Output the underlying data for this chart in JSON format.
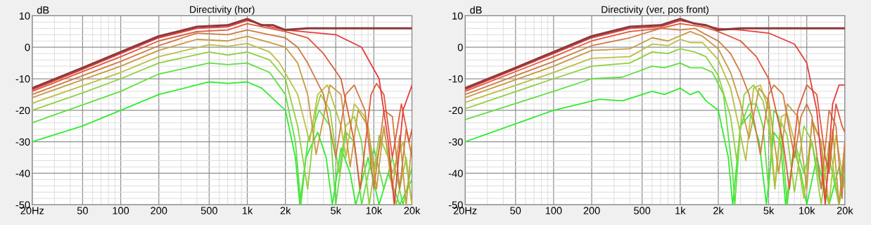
{
  "chart_data": [
    {
      "type": "line",
      "title": "Directivity (hor)",
      "ylabel": "dB",
      "log": "x",
      "grid": true,
      "xlim": [
        20,
        20000
      ],
      "xticks": [
        {
          "value": 20,
          "label": "20Hz"
        },
        50,
        100,
        200,
        500,
        {
          "value": 1000,
          "label": "1k"
        },
        {
          "value": 2000,
          "label": "2k"
        },
        {
          "value": 5000,
          "label": "5k"
        },
        {
          "value": 10000,
          "label": "10k"
        },
        {
          "value": 20000,
          "label": "20k"
        }
      ],
      "ylim": [
        -50,
        10
      ],
      "yticks": [
        -50,
        -40,
        -30,
        -20,
        -10,
        0,
        10
      ],
      "series": [
        {
          "color": "#8a3a3a",
          "x": [
            20,
            50,
            100,
            200,
            400,
            700,
            1000,
            1300,
            1600,
            2000,
            3000,
            5000,
            20000
          ],
          "values": [
            -13,
            -6.5,
            -1.5,
            3.5,
            6.5,
            7,
            9,
            7,
            7,
            5.5,
            6,
            6,
            6
          ]
        },
        {
          "color": "#e63c3c",
          "x": [
            20,
            50,
            100,
            200,
            400,
            700,
            1000,
            1500,
            2000,
            5000,
            8000,
            11000,
            13000,
            14500,
            17000,
            20000
          ],
          "values": [
            -13.5,
            -7,
            -2,
            3,
            6,
            6.5,
            8.5,
            6.5,
            5.5,
            4,
            0,
            -10,
            -30,
            -50,
            -20,
            -12
          ]
        },
        {
          "color": "#e0583a",
          "x": [
            20,
            100,
            200,
            400,
            700,
            1000,
            1500,
            2000,
            3000,
            4000,
            5500,
            7000,
            7800,
            9500,
            10500,
            12000,
            14000,
            16500,
            19000,
            20000
          ],
          "values": [
            -14,
            -3,
            2,
            5,
            5.5,
            7.5,
            6,
            5,
            3,
            -2,
            -10,
            -30,
            -45,
            -15,
            -11.5,
            -15,
            -35,
            -18,
            -30,
            -26
          ]
        },
        {
          "color": "#d07a42",
          "x": [
            20,
            100,
            200,
            400,
            700,
            1000,
            1500,
            2000,
            2500,
            3000,
            4000,
            5000,
            6000,
            7000,
            8500,
            10000,
            12000,
            14000,
            16000,
            18000,
            20000
          ],
          "values": [
            -15,
            -4.5,
            0.5,
            4.5,
            4,
            5.5,
            4,
            3,
            0,
            -5,
            -15,
            -35,
            -15,
            -12,
            -20,
            -45,
            -20,
            -22,
            -45,
            -26,
            -35
          ]
        },
        {
          "color": "#c89a42",
          "x": [
            20,
            100,
            200,
            400,
            700,
            1000,
            1500,
            2000,
            2500,
            3000,
            3500,
            4500,
            5500,
            6500,
            7500,
            9000,
            10500,
            12000,
            14000,
            16000,
            18000,
            20000
          ],
          "values": [
            -16,
            -6,
            -1,
            2.5,
            2,
            3.5,
            1.5,
            0,
            -5,
            -15,
            -34,
            -12,
            -15,
            -38,
            -20,
            -25,
            -45,
            -25,
            -45,
            -28,
            -50,
            -30
          ]
        },
        {
          "color": "#b8c040",
          "x": [
            20,
            100,
            200,
            500,
            700,
            1000,
            1500,
            1800,
            2500,
            3100,
            3600,
            4300,
            5500,
            6000,
            7000,
            8500,
            10000,
            12000,
            14000,
            17000,
            20000
          ],
          "values": [
            -17.8,
            -8,
            -3,
            0.8,
            0.3,
            1.2,
            -1.5,
            -5,
            -15,
            -30,
            -15,
            -12,
            -25,
            -35,
            -18,
            -22,
            -40,
            -26,
            -40,
            -30,
            -50
          ]
        },
        {
          "color": "#90d040",
          "x": [
            20,
            50,
            100,
            200,
            500,
            700,
            1000,
            1500,
            2000,
            2500,
            3000,
            3500,
            3800,
            4500,
            5300,
            6000,
            7000,
            8000,
            9200,
            11000,
            13000,
            15000,
            18000,
            20000
          ],
          "values": [
            -20,
            -14.5,
            -10,
            -5,
            -1.5,
            -2.5,
            -1.5,
            -4,
            -10,
            -25,
            -45,
            -20,
            -15,
            -20,
            -40,
            -25,
            -22,
            -30,
            -50,
            -28,
            -35,
            -50,
            -35,
            -50
          ]
        },
        {
          "color": "#5ee042",
          "x": [
            20,
            100,
            200,
            500,
            700,
            1000,
            1500,
            2000,
            2400,
            2650,
            3000,
            3700,
            4500,
            5000,
            6000,
            7000,
            8000,
            10000,
            12000,
            14000,
            17000,
            20000
          ],
          "values": [
            -24,
            -14,
            -8.5,
            -5,
            -5.5,
            -5,
            -8,
            -15,
            -30,
            -50,
            -30,
            -20,
            -25,
            -50,
            -27,
            -30,
            -50,
            -32,
            -45,
            -35,
            -50,
            -38
          ]
        },
        {
          "color": "#30ec30",
          "x": [
            20,
            50,
            100,
            200,
            500,
            700,
            1000,
            1300,
            2000,
            2400,
            2600,
            2900,
            3600,
            4200,
            4700,
            5500,
            6500,
            7200,
            9000,
            11000,
            13000,
            16000,
            20000
          ],
          "values": [
            -30,
            -25,
            -20,
            -15,
            -11,
            -11.5,
            -11,
            -13,
            -20,
            -35,
            -50,
            -35,
            -27,
            -35,
            -50,
            -32,
            -40,
            -50,
            -35,
            -50,
            -40,
            -50,
            -42
          ]
        }
      ]
    },
    {
      "type": "line",
      "title": "Directivity (ver, pos front)",
      "ylabel": "dB",
      "log": "x",
      "grid": true,
      "xlim": [
        20,
        20000
      ],
      "xticks": [
        {
          "value": 20,
          "label": "20Hz"
        },
        50,
        100,
        200,
        500,
        {
          "value": 1000,
          "label": "1k"
        },
        {
          "value": 2000,
          "label": "2k"
        },
        {
          "value": 5000,
          "label": "5k"
        },
        {
          "value": 10000,
          "label": "10k"
        },
        {
          "value": 20000,
          "label": "20k"
        }
      ],
      "ylim": [
        -50,
        10
      ],
      "yticks": [
        -50,
        -40,
        -30,
        -20,
        -10,
        0,
        10
      ],
      "series": [
        {
          "color": "#8a3a3a",
          "x": [
            20,
            50,
            100,
            200,
            400,
            700,
            1000,
            1300,
            1600,
            2000,
            3000,
            5000,
            20000
          ],
          "values": [
            -13,
            -6.5,
            -1.5,
            3.5,
            6.5,
            7,
            9,
            7.5,
            7,
            5.5,
            6,
            6,
            6
          ]
        },
        {
          "color": "#e63c3c",
          "x": [
            20,
            100,
            200,
            400,
            700,
            1000,
            1500,
            2000,
            3000,
            5000,
            8000,
            10000,
            12000,
            14000,
            16000,
            18000,
            20000
          ],
          "values": [
            -13.5,
            -2,
            3,
            6,
            6.5,
            8.5,
            7,
            6,
            5.5,
            4.5,
            1,
            -5,
            -20,
            -50,
            -18,
            -12,
            -12
          ]
        },
        {
          "color": "#e0583a",
          "x": [
            20,
            100,
            200,
            400,
            700,
            1000,
            1500,
            2000,
            3000,
            4000,
            5000,
            6500,
            7300,
            8500,
            10000,
            12000,
            14000,
            15000,
            17000,
            19000,
            20000
          ],
          "values": [
            -14,
            -3,
            2,
            5,
            6,
            7.5,
            6.5,
            5,
            2,
            -3,
            -10,
            -30,
            -45,
            -20,
            -12,
            -15,
            -35,
            -40,
            -18,
            -25,
            -27
          ]
        },
        {
          "color": "#d07a42",
          "x": [
            20,
            100,
            200,
            400,
            700,
            1000,
            1300,
            1600,
            2000,
            2500,
            3000,
            3500,
            4300,
            5000,
            5500,
            6500,
            8000,
            9000,
            10000,
            11000,
            13000,
            15000,
            17000,
            19000,
            20000
          ],
          "values": [
            -15,
            -4.5,
            0.5,
            3,
            6,
            5.5,
            6,
            4,
            2,
            -2,
            -8,
            -15,
            -34,
            -15,
            -12,
            -15,
            -35,
            -22,
            -18,
            -22,
            -45,
            -20,
            -25,
            -48,
            -30
          ]
        },
        {
          "color": "#c89a42",
          "x": [
            20,
            100,
            200,
            400,
            600,
            800,
            1200,
            1500,
            2000,
            2500,
            3000,
            3500,
            4200,
            5000,
            6000,
            7000,
            8500,
            10000,
            11000,
            13000,
            14000,
            16000,
            18000,
            20000
          ],
          "values": [
            -16,
            -6,
            -1,
            -0.5,
            3,
            2,
            5,
            3.5,
            -0.5,
            -8,
            -18,
            -29,
            -13,
            -17,
            -40,
            -18,
            -22,
            -45,
            -23,
            -30,
            -48,
            -26,
            -50,
            -30
          ]
        },
        {
          "color": "#b8c040",
          "x": [
            20,
            100,
            200,
            400,
            600,
            800,
            1000,
            1200,
            1500,
            2000,
            2500,
            2900,
            3300,
            3800,
            4300,
            5000,
            5600,
            6300,
            7000,
            8000,
            9500,
            11000,
            13000,
            15000,
            17000,
            20000
          ],
          "values": [
            -17.5,
            -8,
            -3.5,
            -3,
            1,
            0.5,
            2.5,
            1.5,
            1.5,
            -4,
            -13,
            -25,
            -36,
            -13,
            -12,
            -20,
            -44,
            -22,
            -21,
            -30,
            -48,
            -24,
            -30,
            -50,
            -28,
            -45
          ]
        },
        {
          "color": "#90d040",
          "x": [
            20,
            100,
            200,
            400,
            600,
            800,
            1000,
            1300,
            1600,
            2000,
            2500,
            2800,
            3200,
            3800,
            4500,
            5000,
            5600,
            6300,
            7000,
            8000,
            9500,
            11000,
            13000,
            15000,
            18000,
            20000
          ],
          "values": [
            -19.5,
            -10,
            -6,
            -5,
            -1.5,
            -2,
            -0.5,
            -1.5,
            -3,
            -9,
            -22,
            -36,
            -15,
            -12,
            -17,
            -25,
            -45,
            -24,
            -28,
            -46,
            -25,
            -30,
            -50,
            -30,
            -50,
            -35
          ]
        },
        {
          "color": "#5ee042",
          "x": [
            20,
            100,
            200,
            350,
            600,
            750,
            1000,
            1200,
            1500,
            1800,
            2200,
            2600,
            2700,
            3000,
            3500,
            4000,
            4500,
            5000,
            5500,
            6000,
            6500,
            7000,
            8000,
            9500,
            11000,
            13000,
            15000,
            18000,
            20000
          ],
          "values": [
            -23,
            -14,
            -10,
            -9.5,
            -6,
            -6.5,
            -5,
            -6.5,
            -6.5,
            -8,
            -15,
            -40,
            -50,
            -25,
            -18,
            -18,
            -25,
            -45,
            -20,
            -22,
            -33,
            -50,
            -30,
            -40,
            -30,
            -45,
            -35,
            -50,
            -40
          ]
        },
        {
          "color": "#30ec30",
          "x": [
            20,
            100,
            230,
            350,
            600,
            750,
            1000,
            1200,
            1400,
            1600,
            2000,
            2400,
            2600,
            3000,
            3600,
            4200,
            4800,
            5500,
            6200,
            6800,
            8000,
            9000,
            10000,
            12000,
            15000,
            18000,
            20000
          ],
          "values": [
            -30,
            -20,
            -16.5,
            -17,
            -14,
            -15,
            -13,
            -15,
            -14,
            -17,
            -20,
            -35,
            -50,
            -25,
            -21,
            -30,
            -50,
            -27,
            -30,
            -50,
            -33,
            -40,
            -50,
            -35,
            -50,
            -38,
            -45
          ]
        }
      ]
    }
  ]
}
